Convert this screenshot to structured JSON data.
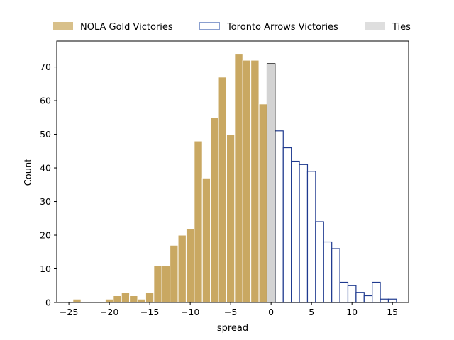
{
  "chart_data": {
    "type": "bar",
    "xlabel": "spread",
    "ylabel": "Count",
    "xlim": [
      -26.5,
      17
    ],
    "ylim": [
      0,
      77.7
    ],
    "xticks": [
      -25,
      -20,
      -15,
      -10,
      -5,
      0,
      5,
      10,
      15
    ],
    "yticks": [
      0,
      10,
      20,
      30,
      40,
      50,
      60,
      70
    ],
    "bin_width": 1,
    "legend_position": "top, above plot",
    "grid": false,
    "colors": {
      "nola": "#c9a862",
      "nola_legend": "#d8c08a",
      "toronto_edge": "#1f3a8f",
      "toronto_legend_edge": "#8a9fcf",
      "ties": "#d3d3d3",
      "ties_legend": "#dedede"
    },
    "series": [
      {
        "name": "NOLA Gold Victories",
        "style": "filled",
        "x": [
          -24,
          -20,
          -19,
          -18,
          -17,
          -16,
          -15,
          -14,
          -13,
          -12,
          -11,
          -10,
          -9,
          -8,
          -7,
          -6,
          -5,
          -4,
          -3,
          -2,
          -1
        ],
        "values": [
          1,
          1,
          2,
          3,
          2,
          1,
          3,
          11,
          11,
          17,
          20,
          22,
          48,
          37,
          55,
          67,
          50,
          74,
          72,
          72,
          59
        ]
      },
      {
        "name": "Toronto Arrows Victories",
        "style": "outline",
        "x": [
          1,
          2,
          3,
          4,
          5,
          6,
          7,
          8,
          9,
          10,
          11,
          12,
          13,
          14,
          15
        ],
        "values": [
          51,
          46,
          42,
          41,
          39,
          24,
          18,
          16,
          6,
          5,
          3,
          2,
          6,
          1,
          1
        ]
      },
      {
        "name": "Ties",
        "style": "filled-outlined",
        "x": [
          0
        ],
        "values": [
          71
        ]
      }
    ]
  }
}
